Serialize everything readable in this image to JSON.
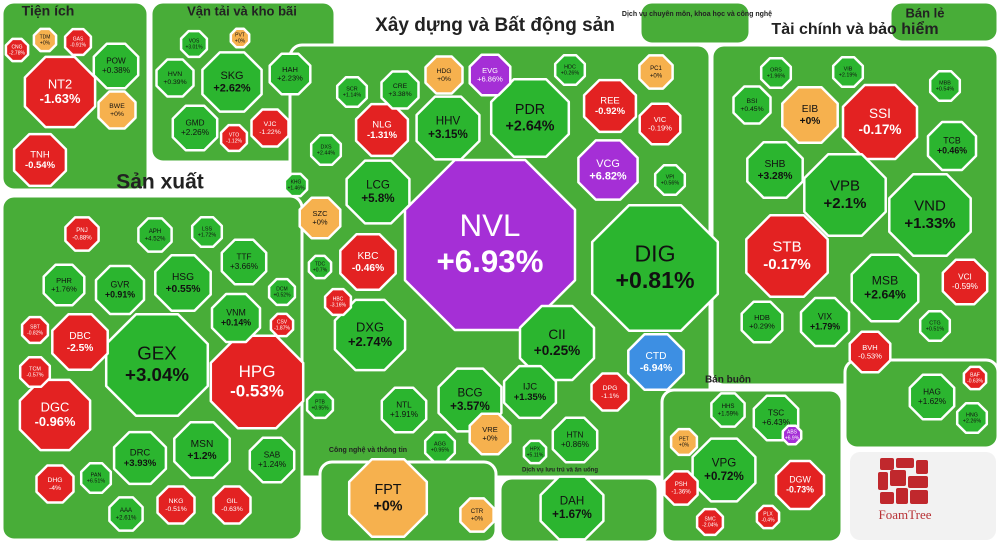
{
  "chart_data": {
    "type": "treemap",
    "colors": {
      "up": "#2bb52f",
      "down": "#e32222",
      "flat": "#f6b14e",
      "region": "#48ad38"
    },
    "watermark": "FoamTree",
    "groups": [
      {
        "title": "Tiện ích",
        "cells": [
          {
            "label": "NT2",
            "value": -1.63,
            "value_label": "-1.63%"
          },
          {
            "label": "POW",
            "value": 0.38,
            "value_label": "+0.38%"
          },
          {
            "label": "BWE",
            "value": 0,
            "value_label": "+0%"
          },
          {
            "label": "GAS",
            "value": -0.91,
            "value_label": "-0.91%"
          },
          {
            "label": "TDM",
            "value": 0,
            "value_label": "+0%"
          },
          {
            "label": "CNG",
            "value": -2.78,
            "value_label": "-2.78%"
          },
          {
            "label": "TNH",
            "value": -0.54,
            "value_label": "-0.54%"
          }
        ]
      },
      {
        "title": "Vận tải và kho bãi",
        "cells": [
          {
            "label": "SKG",
            "value": 2.62,
            "value_label": "+2.62%"
          },
          {
            "label": "HVN",
            "value": 0.39,
            "value_label": "+0.39%"
          },
          {
            "label": "GMD",
            "value": 2.26,
            "value_label": "+2.26%"
          },
          {
            "label": "HAH",
            "value": 2.23,
            "value_label": "+2.23%"
          },
          {
            "label": "VJC",
            "value": -1.22,
            "value_label": "-1.22%"
          },
          {
            "label": "VTO",
            "value": -1.12,
            "value_label": "-1.12%"
          },
          {
            "label": "VOS",
            "value": 3.01,
            "value_label": "+3.01%"
          },
          {
            "label": "PVT",
            "value": 0,
            "value_label": "+0%"
          }
        ]
      },
      {
        "title": "Xây dựng và Bất động sản",
        "cells": [
          {
            "label": "NVL",
            "value": 6.93,
            "value_label": "+6.93%",
            "color": "#a52fd6"
          },
          {
            "label": "DIG",
            "value": 0.81,
            "value_label": "+0.81%"
          },
          {
            "label": "PDR",
            "value": 2.64,
            "value_label": "+2.64%"
          },
          {
            "label": "HHV",
            "value": 3.15,
            "value_label": "+3.15%"
          },
          {
            "label": "LCG",
            "value": 5.8,
            "value_label": "+5.8%"
          },
          {
            "label": "NLG",
            "value": -1.31,
            "value_label": "-1.31%"
          },
          {
            "label": "KBC",
            "value": -0.46,
            "value_label": "-0.46%"
          },
          {
            "label": "DXG",
            "value": 2.74,
            "value_label": "+2.74%"
          },
          {
            "label": "CII",
            "value": 0.25,
            "value_label": "+0.25%"
          },
          {
            "label": "VCG",
            "value": 6.82,
            "value_label": "+6.82%",
            "color": "#a52fd6"
          },
          {
            "label": "REE",
            "value": -0.92,
            "value_label": "-0.92%"
          },
          {
            "label": "VIC",
            "value": -0.19,
            "value_label": "-0.19%"
          },
          {
            "label": "HDG",
            "value": 0,
            "value_label": "+0%"
          },
          {
            "label": "EVG",
            "value": 6.86,
            "value_label": "+6.86%",
            "color": "#a52fd6"
          },
          {
            "label": "PC1",
            "value": 0,
            "value_label": "+0%"
          },
          {
            "label": "CRE",
            "value": 3.38,
            "value_label": "+3.38%"
          },
          {
            "label": "SCR",
            "value": 1.14,
            "value_label": "+1.14%"
          },
          {
            "label": "DXS",
            "value": 2.44,
            "value_label": "+2.44%"
          },
          {
            "label": "SZC",
            "value": 0,
            "value_label": "+0%"
          },
          {
            "label": "KHG",
            "value": 1.46,
            "value_label": "+1.46%"
          },
          {
            "label": "BCG",
            "value": 3.57,
            "value_label": "+3.57%"
          },
          {
            "label": "NTL",
            "value": 1.91,
            "value_label": "+1.91%"
          },
          {
            "label": "IJC",
            "value": 1.35,
            "value_label": "+1.35%"
          },
          {
            "label": "VRE",
            "value": 0,
            "value_label": "+0%"
          },
          {
            "label": "HTN",
            "value": 0.86,
            "value_label": "+0.86%"
          },
          {
            "label": "DPG",
            "value": -1.1,
            "value_label": "-1.1%"
          },
          {
            "label": "CTD",
            "value": -6.94,
            "value_label": "-6.94%",
            "color": "#3d8fe3"
          },
          {
            "label": "AGG",
            "value": 0.95,
            "value_label": "+0.95%"
          },
          {
            "label": "HDC",
            "value": 0.26,
            "value_label": "+0.26%"
          },
          {
            "label": "VPI",
            "value": 0.56,
            "value_label": "+0.56%"
          },
          {
            "label": "HBC",
            "value": -3.16,
            "value_label": "-3.16%"
          },
          {
            "label": "TDC",
            "value": 0.7,
            "value_label": "+0.7%"
          },
          {
            "label": "HPX",
            "value": 5.11,
            "value_label": "+5.11%"
          }
        ]
      },
      {
        "title": "Dịch vụ chuyên môn, khoa học và công nghệ",
        "cells": []
      },
      {
        "title": "Tài chính và bảo hiểm",
        "cells": [
          {
            "label": "SSI",
            "value": -0.17,
            "value_label": "-0.17%"
          },
          {
            "label": "EIB",
            "value": 0,
            "value_label": "+0%"
          },
          {
            "label": "VPB",
            "value": 2.1,
            "value_label": "+2.1%"
          },
          {
            "label": "VND",
            "value": 1.33,
            "value_label": "+1.33%"
          },
          {
            "label": "STB",
            "value": -0.17,
            "value_label": "-0.17%"
          },
          {
            "label": "MSB",
            "value": 2.64,
            "value_label": "+2.64%"
          },
          {
            "label": "SHB",
            "value": 3.28,
            "value_label": "+3.28%"
          },
          {
            "label": "VIX",
            "value": 1.79,
            "value_label": "+1.79%"
          },
          {
            "label": "BSI",
            "value": 0.45,
            "value_label": "+0.45%"
          },
          {
            "label": "TCB",
            "value": 0.46,
            "value_label": "+0.46%"
          },
          {
            "label": "VCI",
            "value": -0.59,
            "value_label": "-0.59%"
          },
          {
            "label": "HDB",
            "value": 0.29,
            "value_label": "+0.29%"
          },
          {
            "label": "BVH",
            "value": -0.53,
            "value_label": "-0.53%"
          },
          {
            "label": "ORS",
            "value": 1.96,
            "value_label": "+1.96%"
          },
          {
            "label": "VIB",
            "value": 2.19,
            "value_label": "+2.19%"
          },
          {
            "label": "MBB",
            "value": 0.54,
            "value_label": "+0.54%"
          },
          {
            "label": "CTG",
            "value": 0.51,
            "value_label": "+0.51%"
          }
        ]
      },
      {
        "title": "Bán lẻ",
        "cells": []
      },
      {
        "title": "Sản xuất",
        "cells": [
          {
            "label": "GEX",
            "value": 3.04,
            "value_label": "+3.04%"
          },
          {
            "label": "HPG",
            "value": -0.53,
            "value_label": "-0.53%"
          },
          {
            "label": "DGC",
            "value": -0.96,
            "value_label": "-0.96%"
          },
          {
            "label": "DBC",
            "value": -2.5,
            "value_label": "-2.5%"
          },
          {
            "label": "MSN",
            "value": 1.2,
            "value_label": "+1.2%"
          },
          {
            "label": "HSG",
            "value": 0.55,
            "value_label": "+0.55%"
          },
          {
            "label": "VNM",
            "value": 0.14,
            "value_label": "+0.14%"
          },
          {
            "label": "TTF",
            "value": 3.66,
            "value_label": "+3.66%"
          },
          {
            "label": "GVR",
            "value": 0.91,
            "value_label": "+0.91%"
          },
          {
            "label": "PHR",
            "value": 1.76,
            "value_label": "+1.76%"
          },
          {
            "label": "APH",
            "value": 4.52,
            "value_label": "+4.52%"
          },
          {
            "label": "LSS",
            "value": 1.72,
            "value_label": "+1.72%"
          },
          {
            "label": "PNJ",
            "value": -0.88,
            "value_label": "-0.88%"
          },
          {
            "label": "DRC",
            "value": 3.93,
            "value_label": "+3.93%"
          },
          {
            "label": "SAB",
            "value": 1.24,
            "value_label": "+1.24%"
          },
          {
            "label": "GIL",
            "value": -0.63,
            "value_label": "-0.63%"
          },
          {
            "label": "NKG",
            "value": -0.51,
            "value_label": "-0.51%"
          },
          {
            "label": "AAA",
            "value": 2.61,
            "value_label": "+2.61%"
          },
          {
            "label": "DHG",
            "value": -4,
            "value_label": "-4%"
          },
          {
            "label": "PAN",
            "value": 6.51,
            "value_label": "+6.51%"
          },
          {
            "label": "TCM",
            "value": -0.57,
            "value_label": "-0.57%"
          },
          {
            "label": "SBT",
            "value": -0.82,
            "value_label": "-0.82%"
          },
          {
            "label": "DCM",
            "value": 0.52,
            "value_label": "+0.52%"
          },
          {
            "label": "CSV",
            "value": -1.87,
            "value_label": "-1.87%"
          },
          {
            "label": "PTB",
            "value": 0.95,
            "value_label": "+0.95%"
          }
        ]
      },
      {
        "title": "Công nghệ và thông tin",
        "cells": [
          {
            "label": "FPT",
            "value": 0,
            "value_label": "+0%"
          },
          {
            "label": "CTR",
            "value": 0,
            "value_label": "+0%"
          }
        ]
      },
      {
        "title": "Dịch vụ lưu trú và ăn uống",
        "cells": [
          {
            "label": "DAH",
            "value": 1.67,
            "value_label": "+1.67%"
          }
        ]
      },
      {
        "title": "Bán buôn",
        "cells": [
          {
            "label": "VPG",
            "value": 0.72,
            "value_label": "+0.72%"
          },
          {
            "label": "TSC",
            "value": 6.43,
            "value_label": "+6.43%"
          },
          {
            "label": "DGW",
            "value": -0.73,
            "value_label": "-0.73%"
          },
          {
            "label": "PSH",
            "value": -1.36,
            "value_label": "-1.36%"
          },
          {
            "label": "HHS",
            "value": 1.59,
            "value_label": "+1.59%"
          },
          {
            "label": "PET",
            "value": 0,
            "value_label": "+0%"
          },
          {
            "label": "SMC",
            "value": -2.04,
            "value_label": "-2.04%"
          },
          {
            "label": "PLX",
            "value": -0.4,
            "value_label": "-0.4%"
          },
          {
            "label": "ABS",
            "value": 6.9,
            "value_label": "+6.9%",
            "color": "#a52fd6"
          }
        ]
      },
      {
        "cells": [
          {
            "label": "HAG",
            "value": 1.62,
            "value_label": "+1.62%"
          },
          {
            "label": "HNG",
            "value": 2.26,
            "value_label": "+2.26%"
          },
          {
            "label": "BAF",
            "value": -0.63,
            "value_label": "-0.63%"
          }
        ]
      }
    ]
  }
}
